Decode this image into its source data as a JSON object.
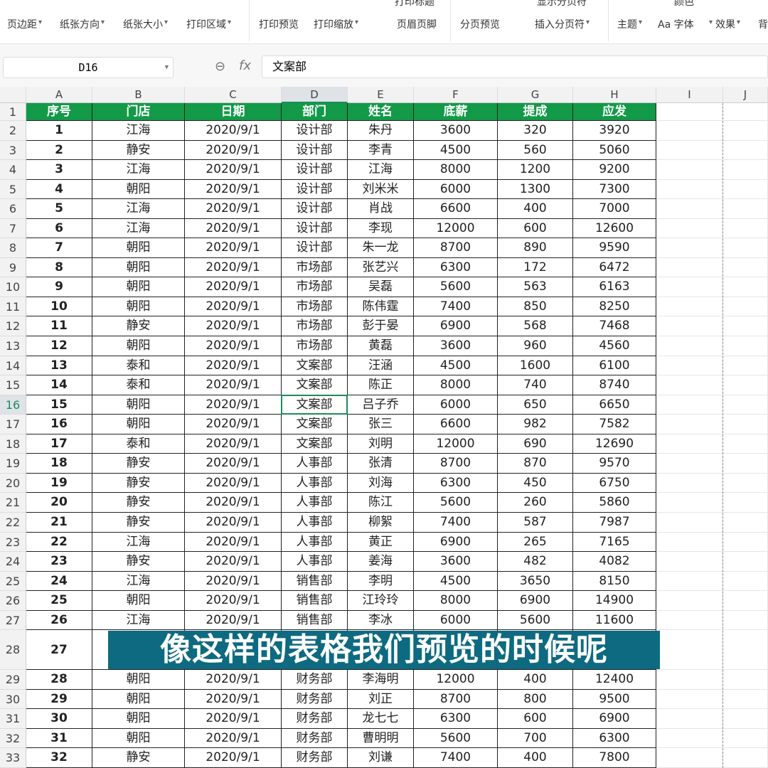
{
  "toolbar": {
    "items": [
      "页边距",
      "纸张方向",
      "纸张大小",
      "打印区域",
      "打印预览",
      "打印缩放",
      "页眉页脚",
      "分页预览",
      "插入分页符",
      "主题",
      "Aa 字体",
      "效果",
      "背"
    ],
    "partial_top": [
      "打印标题",
      "显示分页符",
      "颜色"
    ]
  },
  "formula_bar": {
    "name_box": "D16",
    "fx": "fx",
    "value": "文案部"
  },
  "columns": [
    "A",
    "B",
    "C",
    "D",
    "E",
    "F",
    "G",
    "H",
    "I",
    "J"
  ],
  "headers": [
    "序号",
    "门店",
    "日期",
    "部门",
    "姓名",
    "底薪",
    "提成",
    "应发"
  ],
  "rows": [
    [
      "1",
      "江海",
      "2020/9/1",
      "设计部",
      "朱丹",
      "3600",
      "320",
      "3920"
    ],
    [
      "2",
      "静安",
      "2020/9/1",
      "设计部",
      "李青",
      "4500",
      "560",
      "5060"
    ],
    [
      "3",
      "江海",
      "2020/9/1",
      "设计部",
      "江海",
      "8000",
      "1200",
      "9200"
    ],
    [
      "4",
      "朝阳",
      "2020/9/1",
      "设计部",
      "刘米米",
      "6000",
      "1300",
      "7300"
    ],
    [
      "5",
      "江海",
      "2020/9/1",
      "设计部",
      "肖战",
      "6600",
      "400",
      "7000"
    ],
    [
      "6",
      "江海",
      "2020/9/1",
      "设计部",
      "李现",
      "12000",
      "600",
      "12600"
    ],
    [
      "7",
      "朝阳",
      "2020/9/1",
      "设计部",
      "朱一龙",
      "8700",
      "890",
      "9590"
    ],
    [
      "8",
      "朝阳",
      "2020/9/1",
      "市场部",
      "张艺兴",
      "6300",
      "172",
      "6472"
    ],
    [
      "9",
      "朝阳",
      "2020/9/1",
      "市场部",
      "吴磊",
      "5600",
      "563",
      "6163"
    ],
    [
      "10",
      "朝阳",
      "2020/9/1",
      "市场部",
      "陈伟霆",
      "7400",
      "850",
      "8250"
    ],
    [
      "11",
      "静安",
      "2020/9/1",
      "市场部",
      "彭于晏",
      "6900",
      "568",
      "7468"
    ],
    [
      "12",
      "朝阳",
      "2020/9/1",
      "市场部",
      "黄磊",
      "3600",
      "960",
      "4560"
    ],
    [
      "13",
      "泰和",
      "2020/9/1",
      "文案部",
      "汪涵",
      "4500",
      "1600",
      "6100"
    ],
    [
      "14",
      "泰和",
      "2020/9/1",
      "文案部",
      "陈正",
      "8000",
      "740",
      "8740"
    ],
    [
      "15",
      "朝阳",
      "2020/9/1",
      "文案部",
      "吕子乔",
      "6000",
      "650",
      "6650"
    ],
    [
      "16",
      "朝阳",
      "2020/9/1",
      "文案部",
      "张三",
      "6600",
      "982",
      "7582"
    ],
    [
      "17",
      "泰和",
      "2020/9/1",
      "文案部",
      "刘明",
      "12000",
      "690",
      "12690"
    ],
    [
      "18",
      "静安",
      "2020/9/1",
      "人事部",
      "张清",
      "8700",
      "870",
      "9570"
    ],
    [
      "19",
      "静安",
      "2020/9/1",
      "人事部",
      "刘海",
      "6300",
      "450",
      "6750"
    ],
    [
      "20",
      "静安",
      "2020/9/1",
      "人事部",
      "陈江",
      "5600",
      "260",
      "5860"
    ],
    [
      "21",
      "静安",
      "2020/9/1",
      "人事部",
      "柳絮",
      "7400",
      "587",
      "7987"
    ],
    [
      "22",
      "江海",
      "2020/9/1",
      "人事部",
      "黄正",
      "6900",
      "265",
      "7165"
    ],
    [
      "23",
      "静安",
      "2020/9/1",
      "人事部",
      "姜海",
      "3600",
      "482",
      "4082"
    ],
    [
      "24",
      "江海",
      "2020/9/1",
      "销售部",
      "李明",
      "4500",
      "3650",
      "8150"
    ],
    [
      "25",
      "朝阳",
      "2020/9/1",
      "销售部",
      "江玲玲",
      "8000",
      "6900",
      "14900"
    ],
    [
      "26",
      "江海",
      "2020/9/1",
      "销售部",
      "李冰",
      "6000",
      "5600",
      "11600"
    ],
    [
      "27",
      "",
      "",
      "",
      "",
      "",
      "",
      ""
    ],
    [
      "28",
      "朝阳",
      "2020/9/1",
      "财务部",
      "李海明",
      "12000",
      "400",
      "12400"
    ],
    [
      "29",
      "朝阳",
      "2020/9/1",
      "财务部",
      "刘正",
      "8700",
      "800",
      "9500"
    ],
    [
      "30",
      "朝阳",
      "2020/9/1",
      "财务部",
      "龙七七",
      "6300",
      "600",
      "6900"
    ],
    [
      "31",
      "朝阳",
      "2020/9/1",
      "财务部",
      "曹明明",
      "5600",
      "700",
      "6300"
    ],
    [
      "32",
      "静安",
      "2020/9/1",
      "财务部",
      "刘谦",
      "7400",
      "400",
      "7800"
    ]
  ],
  "subtitle": "像这样的表格我们预览的时候呢",
  "colors": {
    "header_fill": "#129a48",
    "selection": "#1e8a5c",
    "subtitle_bg": "#0e6a80"
  }
}
